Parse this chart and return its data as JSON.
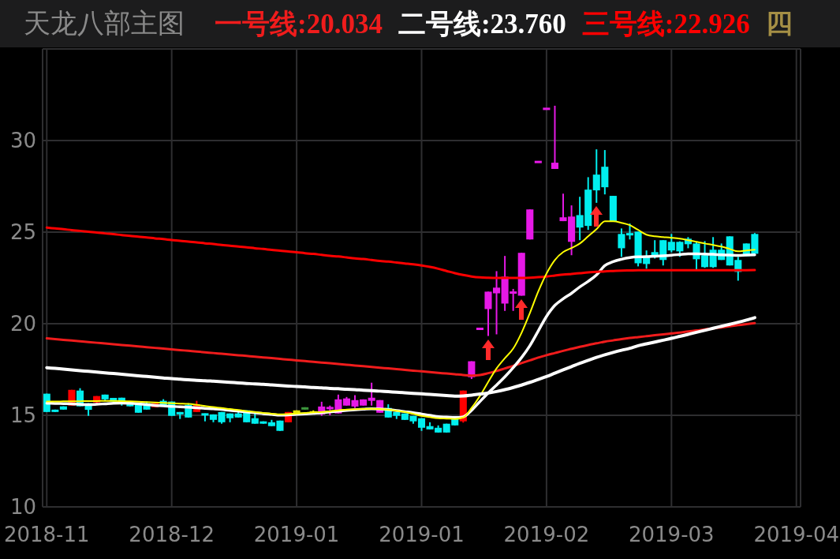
{
  "chart_data": {
    "type": "candlestick",
    "title": "天龙八部主图",
    "categories": [
      "2018-11",
      null,
      null,
      null,
      null,
      null,
      null,
      null,
      null,
      null,
      null,
      null,
      null,
      null,
      null,
      "2018-12",
      null,
      null,
      null,
      null,
      null,
      null,
      null,
      null,
      null,
      null,
      null,
      null,
      null,
      null,
      "2019-01",
      null,
      null,
      null,
      null,
      null,
      null,
      null,
      null,
      null,
      null,
      null,
      null,
      null,
      null,
      "2019-01",
      null,
      null,
      null,
      null,
      null,
      null,
      null,
      null,
      null,
      null,
      null,
      null,
      null,
      null,
      "2019-02",
      null,
      null,
      null,
      null,
      null,
      null,
      null,
      null,
      null,
      null,
      null,
      null,
      null,
      null,
      "2019-03",
      null,
      null,
      null,
      null,
      null,
      null,
      null,
      null,
      null,
      null,
      null,
      null,
      null,
      null,
      "2019-04"
    ],
    "ohlc": [
      [
        16.18,
        16.18,
        15.18,
        15.18
      ],
      [
        15.31,
        15.31,
        15.18,
        15.18
      ],
      [
        15.49,
        15.49,
        15.31,
        15.31
      ],
      [
        15.53,
        16.39,
        15.53,
        16.39
      ],
      [
        16.35,
        16.48,
        15.49,
        15.49
      ],
      [
        15.66,
        15.66,
        14.97,
        15.3
      ],
      [
        15.7,
        16.05,
        15.62,
        16.05
      ],
      [
        16.13,
        16.13,
        15.8,
        15.87
      ],
      [
        15.95,
        15.95,
        15.75,
        15.75
      ],
      [
        15.96,
        15.96,
        15.53,
        15.66
      ],
      [
        15.75,
        15.75,
        15.49,
        15.49
      ],
      [
        15.66,
        15.66,
        15.14,
        15.14
      ],
      [
        15.66,
        15.75,
        15.31,
        15.31
      ],
      [
        15.44,
        15.66,
        15.44,
        15.66
      ],
      [
        15.79,
        15.88,
        15.53,
        15.53
      ],
      [
        15.75,
        15.75,
        14.97,
        14.97
      ],
      [
        15.18,
        15.18,
        14.8,
        15.05
      ],
      [
        15.57,
        15.66,
        14.88,
        14.88
      ],
      [
        15.18,
        15.79,
        15.18,
        15.57
      ],
      [
        15.1,
        15.1,
        14.67,
        15.0
      ],
      [
        15.05,
        15.05,
        14.62,
        14.75
      ],
      [
        15.18,
        15.18,
        14.54,
        14.62
      ],
      [
        15.1,
        15.1,
        14.62,
        14.84
      ],
      [
        15.1,
        15.27,
        14.88,
        14.88
      ],
      [
        15.27,
        15.27,
        14.62,
        14.62
      ],
      [
        14.84,
        15.18,
        14.54,
        14.54
      ],
      [
        14.67,
        14.67,
        14.54,
        14.54
      ],
      [
        14.62,
        14.75,
        14.41,
        14.41
      ],
      [
        14.71,
        14.71,
        14.15,
        14.15
      ],
      [
        14.62,
        15.18,
        14.62,
        15.18
      ],
      [
        15.27,
        15.27,
        15.05,
        15.05
      ],
      [
        15.31,
        15.44,
        15.31,
        15.44
      ],
      [
        15.22,
        15.27,
        15.1,
        15.1
      ],
      [
        15.05,
        15.74,
        14.97,
        15.48
      ],
      [
        15.35,
        15.53,
        15.0,
        15.44
      ],
      [
        15.1,
        16.13,
        15.1,
        15.87
      ],
      [
        15.53,
        16.0,
        15.53,
        15.92
      ],
      [
        15.48,
        16.1,
        15.4,
        15.83
      ],
      [
        15.53,
        15.87,
        15.53,
        15.87
      ],
      [
        15.79,
        16.78,
        15.53,
        15.96
      ],
      [
        15.14,
        15.83,
        15.14,
        15.83
      ],
      [
        15.4,
        15.6,
        14.88,
        14.88
      ],
      [
        15.18,
        15.18,
        14.8,
        14.97
      ],
      [
        15.1,
        15.1,
        14.75,
        14.75
      ],
      [
        14.97,
        14.97,
        14.54,
        14.67
      ],
      [
        14.84,
        14.84,
        14.15,
        14.32
      ],
      [
        14.41,
        14.62,
        14.23,
        14.23
      ],
      [
        14.32,
        14.45,
        14.06,
        14.06
      ],
      [
        14.54,
        14.54,
        14.06,
        14.06
      ],
      [
        14.84,
        14.84,
        14.45,
        14.45
      ],
      [
        14.67,
        16.35,
        14.6,
        16.35
      ],
      [
        17.08,
        17.95,
        16.98,
        17.95
      ],
      [
        19.72,
        19.72,
        19.72,
        19.72
      ],
      [
        20.8,
        21.75,
        19.33,
        21.75
      ],
      [
        21.66,
        22.87,
        19.42,
        21.97
      ],
      [
        21.1,
        23.7,
        20.7,
        22.57
      ],
      [
        21.7,
        21.9,
        20.7,
        21.7
      ],
      [
        21.53,
        23.87,
        21.53,
        23.87
      ],
      [
        24.6,
        26.24,
        24.6,
        26.24
      ],
      [
        28.83,
        28.83,
        28.83,
        28.83
      ],
      [
        31.73,
        31.73,
        31.73,
        31.73
      ],
      [
        28.45,
        31.9,
        28.45,
        28.79
      ],
      [
        25.6,
        27.1,
        25.6,
        25.81
      ],
      [
        24.47,
        26.46,
        23.74,
        25.85
      ],
      [
        25.93,
        26.93,
        24.56,
        25.25
      ],
      [
        27.32,
        28.0,
        25.12,
        25.34
      ],
      [
        28.14,
        29.52,
        26.6,
        27.28
      ],
      [
        28.57,
        29.48,
        27.06,
        27.45
      ],
      [
        26.98,
        26.98,
        25.6,
        25.6
      ],
      [
        24.9,
        25.2,
        23.65,
        24.12
      ],
      [
        24.95,
        25.47,
        24.6,
        24.82
      ],
      [
        25.03,
        25.03,
        23.13,
        23.3
      ],
      [
        23.65,
        24.0,
        23.0,
        23.26
      ],
      [
        23.91,
        24.56,
        23.56,
        23.65
      ],
      [
        24.56,
        24.56,
        23.18,
        23.48
      ],
      [
        24.47,
        24.9,
        23.9,
        24.0
      ],
      [
        24.47,
        24.5,
        23.65,
        23.95
      ],
      [
        24.64,
        24.73,
        24.12,
        24.34
      ],
      [
        24.38,
        24.47,
        22.92,
        23.52
      ],
      [
        23.74,
        24.51,
        23.05,
        23.09
      ],
      [
        24.04,
        24.73,
        23.05,
        23.09
      ],
      [
        24.04,
        24.38,
        23.48,
        23.48
      ],
      [
        24.77,
        24.77,
        23.18,
        23.18
      ],
      [
        23.48,
        23.65,
        22.35,
        22.83
      ],
      [
        24.38,
        24.38,
        23.69,
        23.69
      ],
      [
        24.9,
        24.95,
        23.82,
        23.82
      ],
      null,
      null,
      null,
      null,
      null
    ],
    "colors": [
      "#00eeee",
      "#00eeee",
      "#00eeee",
      "#ff0000",
      "#00eeee",
      "#00eeee",
      "#ff0000",
      "#00eeee",
      "#00eeee",
      "#00eeee",
      "#00eeee",
      "#00eeee",
      "#00eeee",
      "#ff0000",
      "#00eeee",
      "#00eeee",
      "#00eeee",
      "#00eeee",
      "#ff0000",
      "#00eeee",
      "#00eeee",
      "#00eeee",
      "#00eeee",
      "#00eeee",
      "#00eeee",
      "#00eeee",
      "#00eeee",
      "#00eeee",
      "#00eeee",
      "#ff0000",
      "#e6e600",
      "#3c963c",
      "#e6e600",
      "#e619e6",
      "#e619e6",
      "#e619e6",
      "#e619e6",
      "#e619e6",
      "#e619e6",
      "#e619e6",
      "#e619e6",
      "#00eeee",
      "#00eeee",
      "#00eeee",
      "#00eeee",
      "#00eeee",
      "#00eeee",
      "#00eeee",
      "#00eeee",
      "#00eeee",
      "#ff0000",
      "#e619e6",
      "#e619e6",
      "#e619e6",
      "#e619e6",
      "#e619e6",
      "#e619e6",
      "#e619e6",
      "#e619e6",
      "#e619e6",
      "#e619e6",
      "#e619e6",
      "#e619e6",
      "#e619e6",
      "#00eeee",
      "#00eeee",
      "#00eeee",
      "#00eeee",
      "#00eeee",
      "#00eeee",
      "#00eeee",
      "#00eeee",
      "#00eeee",
      "#00eeee",
      "#00eeee",
      "#00eeee",
      "#00eeee",
      "#00eeee",
      "#00eeee",
      "#00eeee",
      "#00eeee",
      "#00eeee",
      "#00eeee",
      "#00eeee",
      "#00eeee",
      "#00eeee",
      null,
      null,
      null,
      null,
      null
    ],
    "series": [
      {
        "name": "一号线:20.034",
        "type": "line",
        "color": "#f01c1c",
        "values": [
          19.2,
          19.16,
          19.12,
          19.08,
          19.04,
          19.0,
          18.96,
          18.92,
          18.88,
          18.84,
          18.8,
          18.76,
          18.72,
          18.68,
          18.64,
          18.6,
          18.56,
          18.52,
          18.48,
          18.44,
          18.4,
          18.36,
          18.32,
          18.28,
          18.24,
          18.2,
          18.16,
          18.12,
          18.08,
          18.04,
          18.0,
          17.96,
          17.92,
          17.88,
          17.84,
          17.8,
          17.76,
          17.72,
          17.68,
          17.64,
          17.6,
          17.56,
          17.52,
          17.48,
          17.44,
          17.4,
          17.36,
          17.32,
          17.28,
          17.24,
          17.2,
          17.17,
          17.2,
          17.3,
          17.42,
          17.56,
          17.7,
          17.85,
          18.0,
          18.15,
          18.28,
          18.4,
          18.52,
          18.63,
          18.74,
          18.84,
          18.93,
          19.02,
          19.09,
          19.16,
          19.22,
          19.27,
          19.32,
          19.37,
          19.42,
          19.47,
          19.52,
          19.58,
          19.63,
          19.69,
          19.74,
          19.8,
          19.86,
          19.92,
          19.98,
          20.034,
          null,
          null,
          null,
          null,
          null
        ]
      },
      {
        "name": "二号线:23.760",
        "type": "line",
        "color": "#ffffff",
        "values": [
          15.66,
          15.65,
          15.64,
          15.63,
          15.6,
          15.58,
          15.6,
          15.63,
          15.66,
          15.67,
          15.66,
          15.63,
          15.58,
          15.54,
          15.52,
          15.49,
          15.46,
          15.44,
          15.41,
          15.38,
          15.36,
          15.32,
          15.27,
          15.23,
          15.18,
          15.14,
          15.09,
          15.05,
          15.01,
          15.02,
          15.05,
          15.08,
          15.11,
          15.14,
          15.18,
          15.23,
          15.27,
          15.3,
          15.33,
          15.36,
          15.35,
          15.31,
          15.26,
          15.2,
          15.14,
          15.07,
          15.0,
          14.92,
          14.9,
          14.88,
          14.92,
          15.27,
          15.75,
          16.22,
          16.65,
          17.1,
          17.6,
          18.15,
          18.8,
          19.6,
          20.4,
          21.0,
          21.36,
          21.66,
          22.01,
          22.31,
          22.66,
          23.17,
          23.39,
          23.52,
          23.61,
          23.65,
          23.66,
          23.69,
          23.71,
          23.74,
          23.78,
          23.82,
          23.82,
          23.8,
          23.79,
          23.76,
          23.75,
          23.73,
          23.75,
          23.76,
          null,
          null,
          null,
          null,
          null
        ]
      },
      {
        "name": "三号线:22.926",
        "type": "line",
        "color": "#ff0000",
        "values": [
          25.25,
          25.2,
          25.16,
          25.11,
          25.07,
          25.02,
          24.98,
          24.93,
          24.89,
          24.84,
          24.8,
          24.75,
          24.71,
          24.66,
          24.62,
          24.57,
          24.53,
          24.48,
          24.44,
          24.39,
          24.35,
          24.3,
          24.26,
          24.21,
          24.17,
          24.12,
          24.08,
          24.03,
          23.99,
          23.94,
          23.9,
          23.85,
          23.81,
          23.76,
          23.71,
          23.67,
          23.62,
          23.57,
          23.53,
          23.48,
          23.43,
          23.39,
          23.34,
          23.29,
          23.24,
          23.18,
          23.1,
          23.0,
          22.88,
          22.76,
          22.66,
          22.58,
          22.53,
          22.51,
          22.5,
          22.5,
          22.5,
          22.5,
          22.51,
          22.54,
          22.58,
          22.63,
          22.68,
          22.72,
          22.76,
          22.8,
          22.83,
          22.86,
          22.88,
          22.9,
          22.91,
          22.92,
          22.92,
          22.92,
          22.92,
          22.92,
          22.92,
          22.92,
          22.92,
          22.92,
          22.92,
          22.92,
          22.92,
          22.92,
          22.92,
          22.926,
          null,
          null,
          null,
          null,
          null
        ]
      },
      {
        "type": "line",
        "color": "#ffff00",
        "values": [
          15.75,
          15.75,
          15.76,
          15.77,
          15.77,
          15.78,
          15.78,
          15.79,
          15.79,
          15.78,
          15.76,
          15.74,
          15.72,
          15.7,
          15.68,
          15.66,
          15.64,
          15.62,
          15.57,
          15.51,
          15.45,
          15.4,
          15.34,
          15.29,
          15.23,
          15.18,
          15.13,
          15.09,
          15.05,
          15.07,
          15.1,
          15.13,
          15.16,
          15.18,
          15.22,
          15.27,
          15.31,
          15.33,
          15.35,
          15.36,
          15.34,
          15.31,
          15.25,
          15.18,
          15.08,
          14.97,
          14.9,
          14.84,
          14.82,
          14.8,
          14.88,
          15.4,
          16.05,
          16.82,
          17.56,
          18.12,
          18.64,
          19.5,
          20.58,
          21.75,
          22.74,
          23.48,
          23.91,
          24.13,
          24.38,
          24.77,
          25.16,
          25.59,
          25.59,
          25.51,
          25.38,
          25.12,
          24.86,
          24.77,
          24.73,
          24.69,
          24.64,
          24.56,
          24.47,
          24.38,
          24.3,
          24.21,
          24.08,
          23.95,
          24.0,
          24.04,
          null,
          null,
          null,
          null,
          null
        ]
      },
      {
        "type": "line",
        "color": "#ffffff",
        "values": [
          17.6,
          17.56,
          17.52,
          17.48,
          17.44,
          17.4,
          17.36,
          17.32,
          17.28,
          17.24,
          17.2,
          17.16,
          17.12,
          17.08,
          17.04,
          17.0,
          16.97,
          16.94,
          16.91,
          16.89,
          16.86,
          16.83,
          16.8,
          16.77,
          16.74,
          16.71,
          16.69,
          16.66,
          16.63,
          16.6,
          16.57,
          16.55,
          16.52,
          16.5,
          16.47,
          16.45,
          16.42,
          16.4,
          16.37,
          16.35,
          16.32,
          16.29,
          16.26,
          16.23,
          16.2,
          16.17,
          16.14,
          16.11,
          16.08,
          16.05,
          16.06,
          16.1,
          16.16,
          16.22,
          16.3,
          16.4,
          16.52,
          16.65,
          16.8,
          16.96,
          17.12,
          17.3,
          17.48,
          17.66,
          17.84,
          18.0,
          18.16,
          18.3,
          18.43,
          18.55,
          18.66,
          18.8,
          18.9,
          19.0,
          19.1,
          19.2,
          19.31,
          19.42,
          19.53,
          19.64,
          19.75,
          19.86,
          19.97,
          20.08,
          20.2,
          20.33,
          null,
          null,
          null,
          null,
          null
        ]
      }
    ],
    "annotations": [
      "四"
    ],
    "ylim": [
      10,
      35
    ],
    "yticks": [
      10,
      15,
      20,
      25,
      30
    ],
    "grid": true,
    "legend": "top"
  }
}
